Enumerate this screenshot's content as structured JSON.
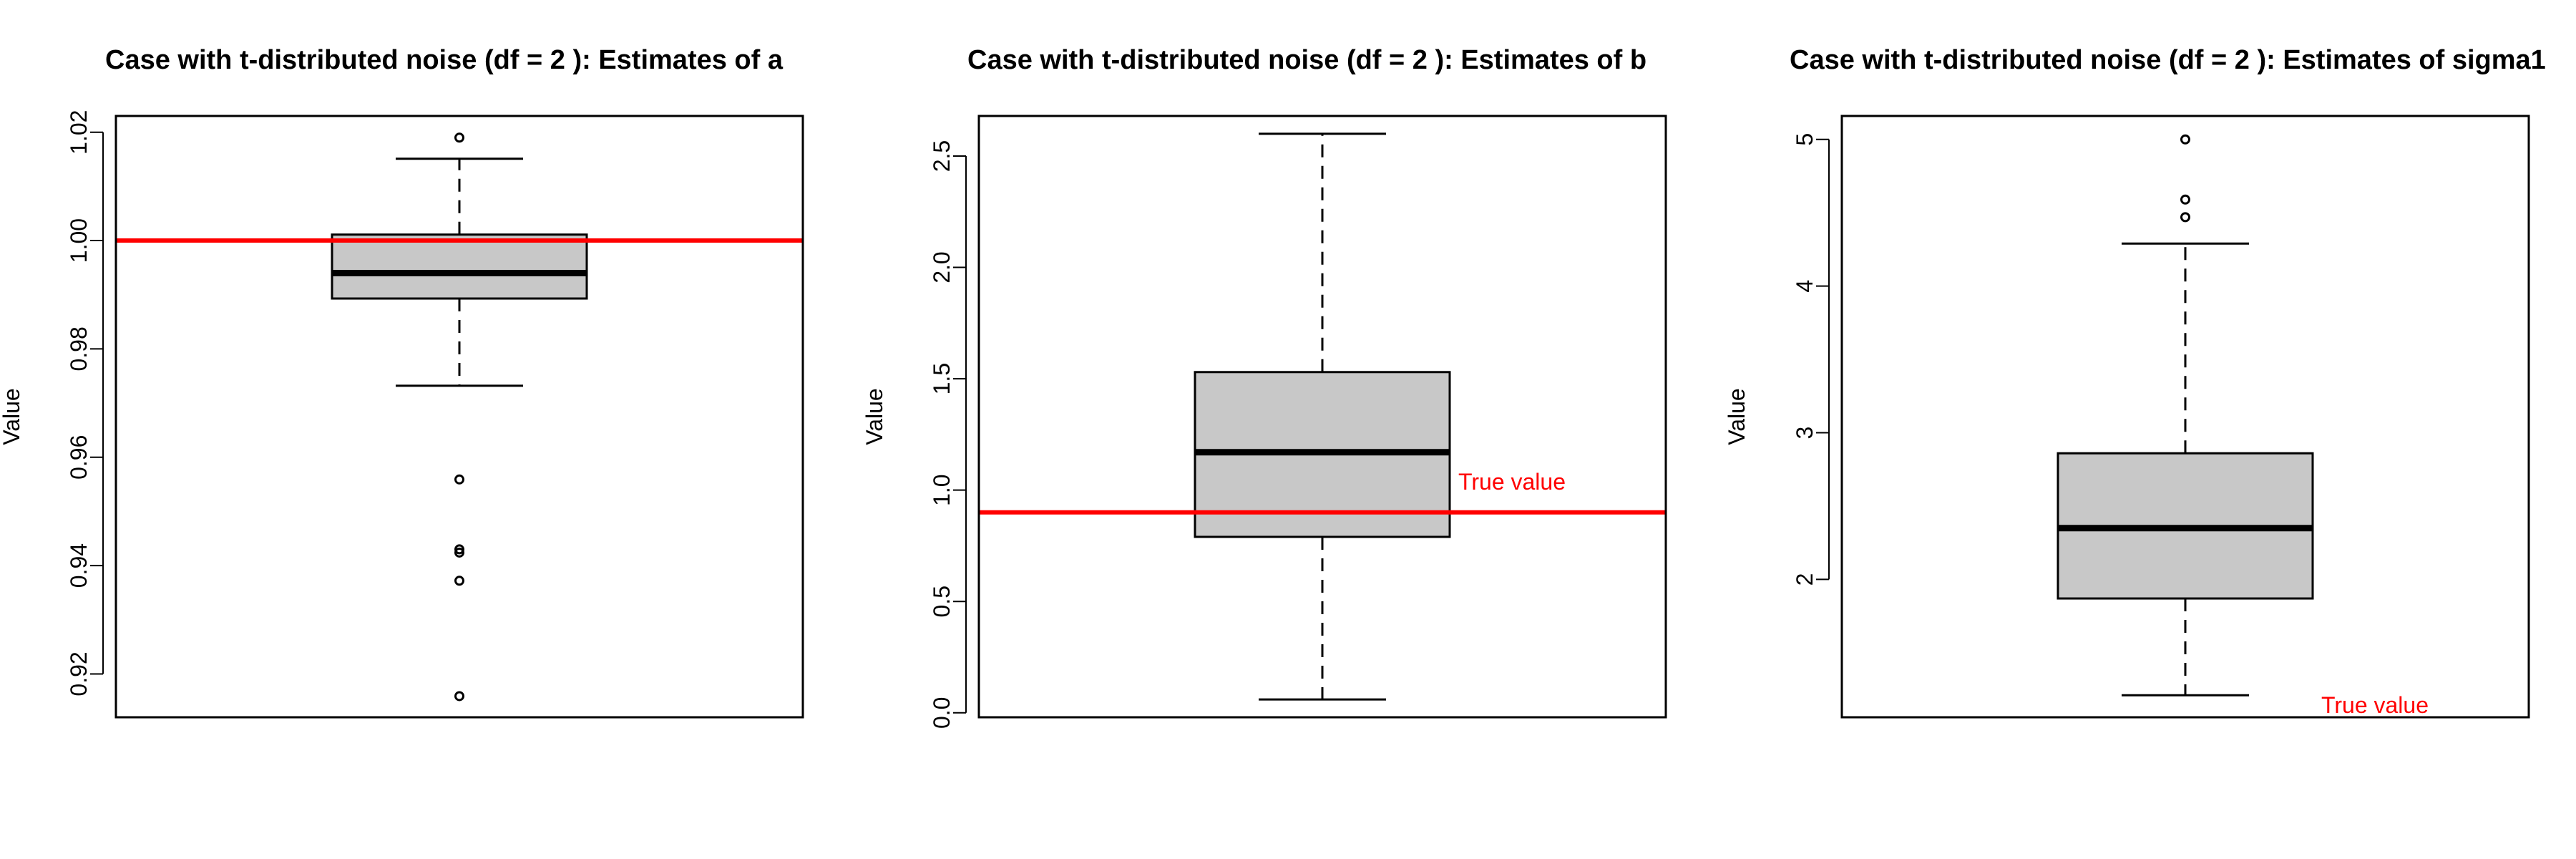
{
  "chart_data": [
    {
      "type": "box",
      "title": "Case with t-distributed noise (df = 2 ): Estimates of a",
      "ylabel": "Value",
      "xlabel": "",
      "ylim": [
        0.912,
        1.023
      ],
      "yticks": [
        0.92,
        0.94,
        0.96,
        0.98,
        1.0,
        1.02
      ],
      "ytick_labels": [
        "0.92",
        "0.94",
        "0.96",
        "0.98",
        "1.00",
        "1.02"
      ],
      "box": {
        "min": 0.9732,
        "q1": 0.9893,
        "median": 0.994,
        "q3": 1.0011,
        "max": 1.0151,
        "outliers": [
          1.019,
          0.9559,
          0.943,
          0.9424,
          0.9372,
          0.9159
        ]
      },
      "reference_line": {
        "value": 1.0,
        "color": "#ff0000",
        "label": ""
      },
      "grid": false
    },
    {
      "type": "box",
      "title": "Case with t-distributed noise (df = 2 ): Estimates of b",
      "ylabel": "Value",
      "xlabel": "",
      "ylim": [
        -0.02,
        2.68
      ],
      "yticks": [
        0.0,
        0.5,
        1.0,
        1.5,
        2.0,
        2.5
      ],
      "ytick_labels": [
        "0.0",
        "0.5",
        "1.0",
        "1.5",
        "2.0",
        "2.5"
      ],
      "box": {
        "min": 0.06,
        "q1": 0.79,
        "median": 1.17,
        "q3": 1.53,
        "max": 2.6,
        "outliers": []
      },
      "reference_line": {
        "value": 0.9,
        "color": "#ff0000",
        "label": "True value"
      },
      "grid": false
    },
    {
      "type": "box",
      "title": "Case with t-distributed noise (df = 2 ): Estimates of sigma1",
      "ylabel": "Value",
      "xlabel": "",
      "ylim": [
        1.06,
        5.16
      ],
      "yticks": [
        2,
        3,
        4,
        5
      ],
      "ytick_labels": [
        "2",
        "3",
        "4",
        "5"
      ],
      "box": {
        "min": 1.21,
        "q1": 1.87,
        "median": 2.35,
        "q3": 2.86,
        "max": 4.29,
        "outliers": [
          5.0,
          4.59,
          4.47
        ]
      },
      "reference_line": {
        "value": 1.0,
        "color": "#ff0000",
        "label": "True value"
      },
      "grid": false
    }
  ]
}
